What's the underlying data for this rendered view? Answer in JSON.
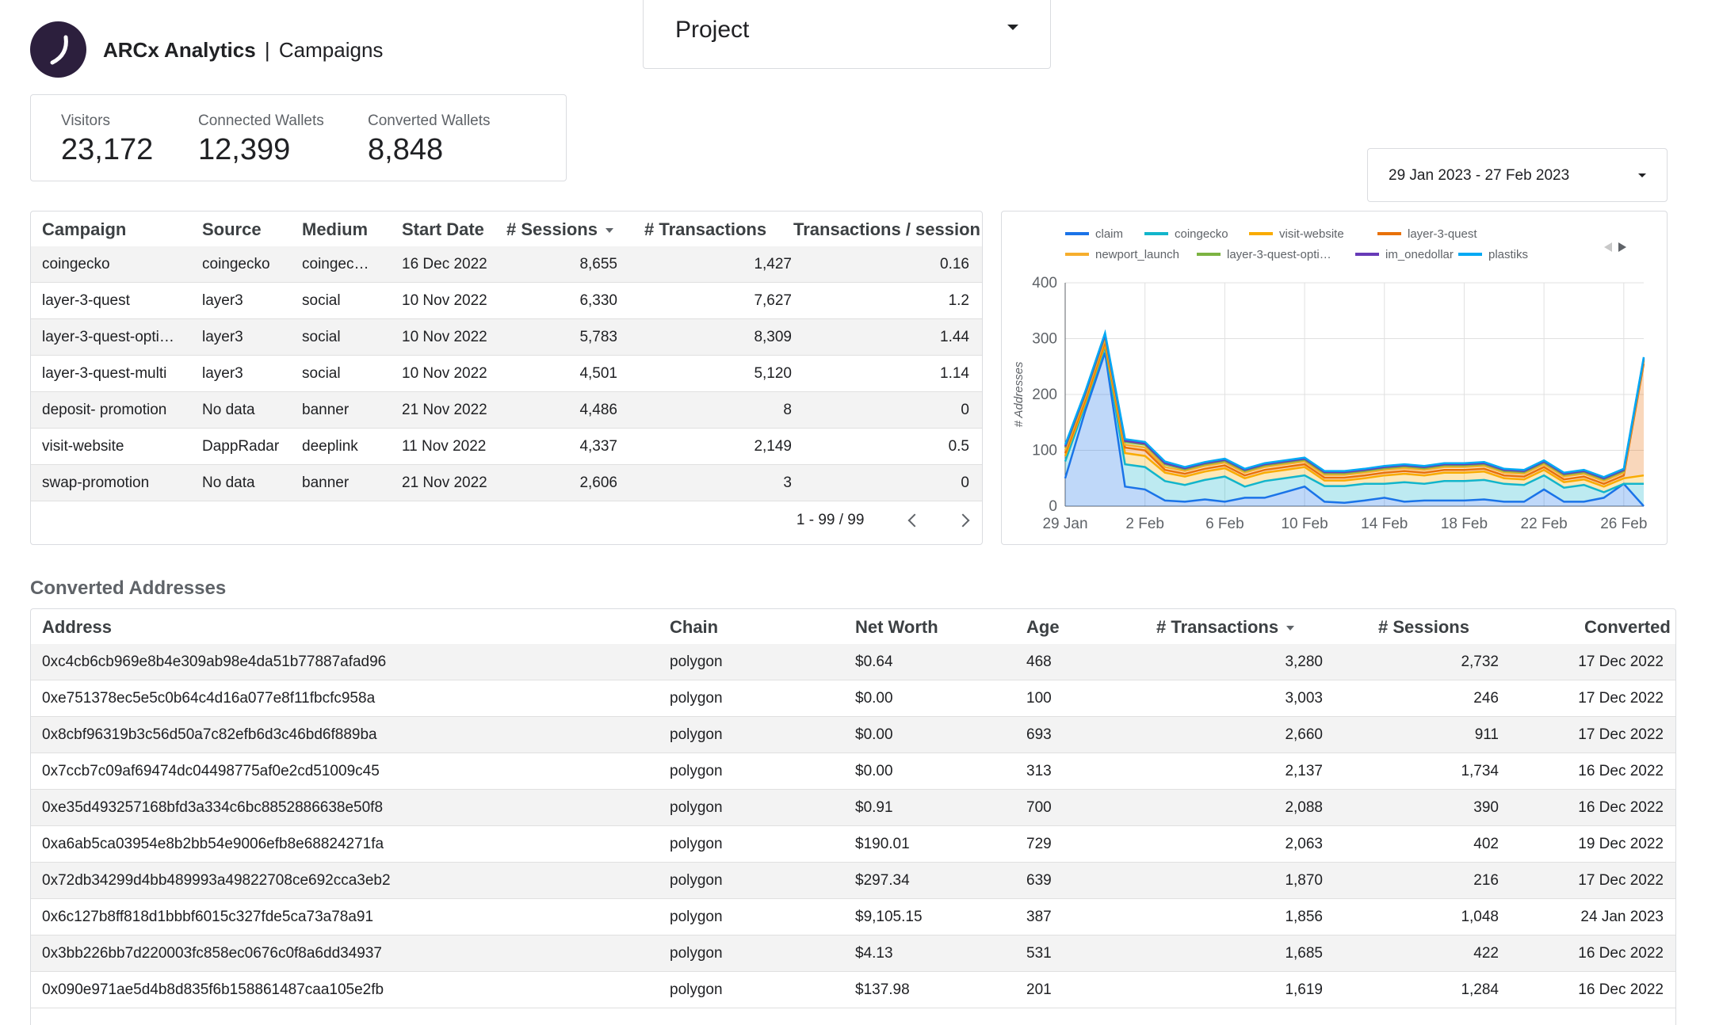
{
  "header": {
    "brand": "ARCx Analytics",
    "separator": "|",
    "page": "Campaigns"
  },
  "project_filter": {
    "label": "Project"
  },
  "kpis": [
    {
      "label": "Visitors",
      "value": "23,172"
    },
    {
      "label": "Connected Wallets",
      "value": "12,399"
    },
    {
      "label": "Converted Wallets",
      "value": "8,848"
    }
  ],
  "date_range": {
    "label": "29 Jan 2023 - 27 Feb 2023"
  },
  "campaign_table": {
    "columns": [
      "Campaign",
      "Source",
      "Medium",
      "Start Date",
      "# Sessions",
      "# Transactions",
      "Transactions / session"
    ],
    "rows": [
      [
        "coingecko",
        "coingecko",
        "coingec…",
        "16 Dec 2022",
        "8,655",
        "1,427",
        "0.16"
      ],
      [
        "layer-3-quest",
        "layer3",
        "social",
        "10 Nov 2022",
        "6,330",
        "7,627",
        "1.2"
      ],
      [
        "layer-3-quest-opti…",
        "layer3",
        "social",
        "10 Nov 2022",
        "5,783",
        "8,309",
        "1.44"
      ],
      [
        "layer-3-quest-multi",
        "layer3",
        "social",
        "10 Nov 2022",
        "4,501",
        "5,120",
        "1.14"
      ],
      [
        "deposit- promotion",
        "No data",
        "banner",
        "21 Nov 2022",
        "4,486",
        "8",
        "0"
      ],
      [
        "visit-website",
        "DappRadar",
        "deeplink",
        "11 Nov 2022",
        "4,337",
        "2,149",
        "0.5"
      ],
      [
        "swap-promotion",
        "No data",
        "banner",
        "21 Nov 2022",
        "2,606",
        "3",
        "0"
      ]
    ],
    "pagination": "1 - 99 / 99"
  },
  "chart_data": {
    "type": "area",
    "stacked": true,
    "ylabel": "# Addresses",
    "ylim": [
      0,
      400
    ],
    "yticks": [
      "0",
      "100",
      "200",
      "300",
      "400"
    ],
    "x": [
      "29 Jan",
      "30 Jan",
      "31 Jan",
      "1 Feb",
      "2 Feb",
      "3 Feb",
      "4 Feb",
      "5 Feb",
      "6 Feb",
      "7 Feb",
      "8 Feb",
      "9 Feb",
      "10 Feb",
      "11 Feb",
      "12 Feb",
      "13 Feb",
      "14 Feb",
      "15 Feb",
      "16 Feb",
      "17 Feb",
      "18 Feb",
      "19 Feb",
      "20 Feb",
      "21 Feb",
      "22 Feb",
      "23 Feb",
      "24 Feb",
      "25 Feb",
      "26 Feb",
      "27 Feb"
    ],
    "xticks": [
      "29 Jan",
      "2 Feb",
      "6 Feb",
      "10 Feb",
      "14 Feb",
      "18 Feb",
      "22 Feb",
      "26 Feb"
    ],
    "legend_position": "top",
    "series": [
      {
        "name": "claim",
        "color": "#1a73e8",
        "values": [
          50,
          170,
          275,
          35,
          30,
          10,
          8,
          12,
          8,
          15,
          15,
          25,
          35,
          8,
          6,
          10,
          15,
          8,
          10,
          10,
          10,
          12,
          8,
          8,
          30,
          8,
          8,
          15,
          40,
          0
        ]
      },
      {
        "name": "coingecko",
        "color": "#12b5cb",
        "values": [
          30,
          10,
          10,
          40,
          40,
          35,
          30,
          35,
          45,
          20,
          30,
          25,
          20,
          28,
          30,
          30,
          25,
          35,
          30,
          35,
          35,
          35,
          32,
          30,
          25,
          25,
          30,
          10,
          0,
          40
        ]
      },
      {
        "name": "visit-website",
        "color": "#f9ab00",
        "values": [
          10,
          5,
          5,
          20,
          20,
          15,
          15,
          15,
          15,
          15,
          15,
          15,
          15,
          10,
          10,
          10,
          15,
          15,
          15,
          15,
          15,
          15,
          10,
          10,
          10,
          10,
          10,
          10,
          10,
          15
        ]
      },
      {
        "name": "layer-3-quest",
        "color": "#e8710a",
        "values": [
          5,
          5,
          5,
          10,
          10,
          5,
          5,
          5,
          5,
          5,
          5,
          5,
          5,
          5,
          5,
          5,
          5,
          5,
          5,
          5,
          5,
          5,
          5,
          5,
          5,
          5,
          5,
          5,
          5,
          200
        ]
      },
      {
        "name": "newport_launch",
        "color": "#f6ae2d",
        "values": [
          5,
          5,
          5,
          5,
          5,
          5,
          5,
          5,
          5,
          5,
          5,
          5,
          5,
          5,
          5,
          5,
          5,
          5,
          5,
          5,
          5,
          5,
          5,
          5,
          5,
          5,
          5,
          5,
          5,
          5
        ]
      },
      {
        "name": "layer-3-quest-opti…",
        "color": "#7cb342",
        "values": [
          5,
          5,
          5,
          5,
          5,
          5,
          3,
          3,
          3,
          3,
          3,
          3,
          3,
          3,
          3,
          3,
          3,
          3,
          3,
          3,
          3,
          3,
          3,
          3,
          3,
          3,
          3,
          3,
          3,
          3
        ]
      },
      {
        "name": "im_onedollar",
        "color": "#673ab7",
        "values": [
          2,
          2,
          2,
          2,
          2,
          2,
          2,
          2,
          2,
          2,
          2,
          2,
          2,
          2,
          2,
          2,
          2,
          2,
          2,
          2,
          2,
          2,
          2,
          2,
          2,
          2,
          2,
          2,
          2,
          2
        ]
      },
      {
        "name": "plastiks",
        "color": "#03a9f4",
        "values": [
          3,
          3,
          3,
          3,
          3,
          3,
          2,
          2,
          2,
          2,
          2,
          2,
          2,
          2,
          2,
          2,
          2,
          2,
          2,
          2,
          2,
          2,
          2,
          2,
          2,
          2,
          2,
          2,
          2,
          2
        ]
      }
    ]
  },
  "converted_section": {
    "title": "Converted Addresses",
    "columns": [
      "Address",
      "Chain",
      "Net Worth",
      "Age",
      "# Transactions",
      "# Sessions",
      "Converted"
    ],
    "rows": [
      [
        "0xc4cb6cb969e8b4e309ab98e4da51b77887afad96",
        "polygon",
        "$0.64",
        "468",
        "3,280",
        "2,732",
        "17 Dec 2022"
      ],
      [
        "0xe751378ec5e5c0b64c4d16a077e8f11fbcfc958a",
        "polygon",
        "$0.00",
        "100",
        "3,003",
        "246",
        "17 Dec 2022"
      ],
      [
        "0x8cbf96319b3c56d50a7c82efb6d3c46bd6f889ba",
        "polygon",
        "$0.00",
        "693",
        "2,660",
        "911",
        "17 Dec 2022"
      ],
      [
        "0x7ccb7c09af69474dc04498775af0e2cd51009c45",
        "polygon",
        "$0.00",
        "313",
        "2,137",
        "1,734",
        "16 Dec 2022"
      ],
      [
        "0xe35d493257168bfd3a334c6bc8852886638e50f8",
        "polygon",
        "$0.91",
        "700",
        "2,088",
        "390",
        "16 Dec 2022"
      ],
      [
        "0xa6ab5ca03954e8b2bb54e9006efb8e68824271fa",
        "polygon",
        "$190.01",
        "729",
        "2,063",
        "402",
        "19 Dec 2022"
      ],
      [
        "0x72db34299d4bb489993a49822708ce692cca3eb2",
        "polygon",
        "$297.34",
        "639",
        "1,870",
        "216",
        "17 Dec 2022"
      ],
      [
        "0x6c127b8ff818d1bbbf6015c327fde5ca73a78a91",
        "polygon",
        "$9,105.15",
        "387",
        "1,856",
        "1,048",
        "24 Jan 2023"
      ],
      [
        "0x3bb226bb7d220003fc858ec0676c0f8a6dd34937",
        "polygon",
        "$4.13",
        "531",
        "1,685",
        "422",
        "16 Dec 2022"
      ],
      [
        "0x090e971ae5d4b8d835f6b158861487caa105e2fb",
        "polygon",
        "$137.98",
        "201",
        "1,619",
        "1,284",
        "16 Dec 2022"
      ]
    ]
  }
}
